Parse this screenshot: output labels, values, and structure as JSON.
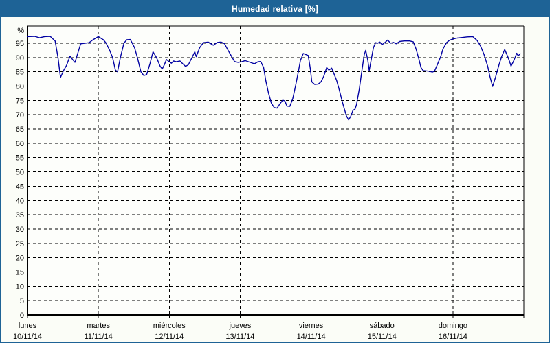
{
  "window": {
    "title": "Humedad relativa [%]"
  },
  "colors": {
    "titlebar_bg": "#1e6396",
    "window_border": "#1e6396",
    "page_bg": "#fbfdf7",
    "plot_bg": "#fdfefb",
    "grid": "#000000",
    "axis": "#000000",
    "text": "#000000",
    "line": "#0000a2"
  },
  "chart_data": {
    "type": "line",
    "title": "Humedad relativa [%]",
    "ylabel": "%",
    "y_unit_label": "%",
    "ylim": [
      0,
      101
    ],
    "y_ticks": [
      5,
      10,
      15,
      20,
      25,
      30,
      35,
      40,
      45,
      50,
      55,
      60,
      65,
      70,
      75,
      80,
      85,
      90,
      95
    ],
    "grid": "dashed",
    "legend_position": "none",
    "x_days": [
      {
        "day": "lunes",
        "date": "10/11/14"
      },
      {
        "day": "martes",
        "date": "11/11/14"
      },
      {
        "day": "miércoles",
        "date": "12/11/14"
      },
      {
        "day": "jueves",
        "date": "13/11/14"
      },
      {
        "day": "viernes",
        "date": "14/11/14"
      },
      {
        "day": "sábado",
        "date": "15/11/14"
      },
      {
        "day": "domingo",
        "date": "16/11/14"
      }
    ],
    "series": [
      {
        "name": "Humedad relativa [%]",
        "color": "#0000a2",
        "points": [
          [
            0.0,
            97.3
          ],
          [
            0.1,
            97.4
          ],
          [
            0.17,
            96.9
          ],
          [
            0.24,
            97.3
          ],
          [
            0.32,
            97.4
          ],
          [
            0.39,
            95.8
          ],
          [
            0.43,
            90.0
          ],
          [
            0.465,
            83.0
          ],
          [
            0.51,
            85.5
          ],
          [
            0.55,
            87.2
          ],
          [
            0.6,
            90.5
          ],
          [
            0.64,
            89.2
          ],
          [
            0.67,
            88.3
          ],
          [
            0.71,
            91.5
          ],
          [
            0.75,
            94.8
          ],
          [
            0.81,
            95.0
          ],
          [
            0.87,
            95.2
          ],
          [
            0.93,
            96.3
          ],
          [
            1.0,
            97.3
          ],
          [
            1.07,
            96.2
          ],
          [
            1.11,
            95.0
          ],
          [
            1.16,
            92.5
          ],
          [
            1.2,
            90.0
          ],
          [
            1.24,
            85.6
          ],
          [
            1.27,
            85.0
          ],
          [
            1.31,
            90.0
          ],
          [
            1.36,
            95.0
          ],
          [
            1.4,
            96.2
          ],
          [
            1.45,
            96.3
          ],
          [
            1.51,
            93.5
          ],
          [
            1.55,
            90.0
          ],
          [
            1.6,
            85.0
          ],
          [
            1.64,
            83.7
          ],
          [
            1.68,
            84.0
          ],
          [
            1.73,
            88.0
          ],
          [
            1.77,
            92.0
          ],
          [
            1.82,
            90.0
          ],
          [
            1.87,
            87.0
          ],
          [
            1.9,
            86.0
          ],
          [
            1.93,
            87.5
          ],
          [
            1.96,
            89.3
          ],
          [
            2.0,
            88.5
          ],
          [
            2.03,
            88.0
          ],
          [
            2.06,
            88.8
          ],
          [
            2.1,
            88.5
          ],
          [
            2.15,
            88.8
          ],
          [
            2.19,
            87.8
          ],
          [
            2.23,
            86.9
          ],
          [
            2.27,
            87.5
          ],
          [
            2.32,
            90.0
          ],
          [
            2.36,
            92.0
          ],
          [
            2.38,
            90.3
          ],
          [
            2.43,
            93.5
          ],
          [
            2.48,
            95.2
          ],
          [
            2.55,
            95.4
          ],
          [
            2.62,
            94.3
          ],
          [
            2.68,
            95.3
          ],
          [
            2.73,
            95.4
          ],
          [
            2.78,
            94.8
          ],
          [
            2.83,
            92.5
          ],
          [
            2.88,
            90.3
          ],
          [
            2.92,
            88.6
          ],
          [
            2.97,
            88.3
          ],
          [
            3.02,
            88.5
          ],
          [
            3.07,
            88.9
          ],
          [
            3.14,
            88.3
          ],
          [
            3.2,
            87.8
          ],
          [
            3.25,
            88.5
          ],
          [
            3.29,
            88.6
          ],
          [
            3.33,
            86.5
          ],
          [
            3.36,
            82.0
          ],
          [
            3.4,
            77.5
          ],
          [
            3.44,
            74.0
          ],
          [
            3.48,
            72.5
          ],
          [
            3.52,
            72.3
          ],
          [
            3.56,
            73.8
          ],
          [
            3.6,
            75.1
          ],
          [
            3.63,
            74.8
          ],
          [
            3.66,
            73.0
          ],
          [
            3.7,
            72.9
          ],
          [
            3.74,
            75.5
          ],
          [
            3.78,
            80.0
          ],
          [
            3.82,
            85.0
          ],
          [
            3.85,
            89.0
          ],
          [
            3.89,
            91.4
          ],
          [
            3.93,
            91.0
          ],
          [
            3.96,
            90.7
          ],
          [
            3.99,
            86.0
          ],
          [
            4.01,
            81.5
          ],
          [
            4.05,
            80.6
          ],
          [
            4.1,
            80.7
          ],
          [
            4.14,
            81.5
          ],
          [
            4.18,
            83.5
          ],
          [
            4.22,
            86.5
          ],
          [
            4.25,
            85.6
          ],
          [
            4.29,
            86.3
          ],
          [
            4.32,
            84.5
          ],
          [
            4.36,
            82.0
          ],
          [
            4.4,
            78.5
          ],
          [
            4.44,
            74.5
          ],
          [
            4.47,
            72.0
          ],
          [
            4.5,
            69.5
          ],
          [
            4.53,
            68.2
          ],
          [
            4.56,
            69.5
          ],
          [
            4.59,
            71.5
          ],
          [
            4.62,
            72.0
          ],
          [
            4.64,
            73.5
          ],
          [
            4.68,
            79.0
          ],
          [
            4.72,
            86.0
          ],
          [
            4.75,
            91.0
          ],
          [
            4.77,
            92.5
          ],
          [
            4.8,
            89.0
          ],
          [
            4.82,
            85.4
          ],
          [
            4.85,
            89.5
          ],
          [
            4.88,
            93.5
          ],
          [
            4.91,
            95.2
          ],
          [
            4.94,
            95.0
          ],
          [
            4.97,
            95.4
          ],
          [
            5.0,
            94.5
          ],
          [
            5.04,
            95.2
          ],
          [
            5.08,
            96.1
          ],
          [
            5.12,
            95.0
          ],
          [
            5.16,
            95.3
          ],
          [
            5.2,
            94.8
          ],
          [
            5.25,
            95.6
          ],
          [
            5.31,
            95.8
          ],
          [
            5.39,
            95.8
          ],
          [
            5.44,
            95.5
          ],
          [
            5.48,
            93.0
          ],
          [
            5.52,
            89.5
          ],
          [
            5.55,
            86.5
          ],
          [
            5.58,
            85.4
          ],
          [
            5.63,
            85.3
          ],
          [
            5.67,
            85.2
          ],
          [
            5.71,
            84.9
          ],
          [
            5.74,
            85.2
          ],
          [
            5.78,
            87.5
          ],
          [
            5.83,
            90.5
          ],
          [
            5.86,
            93.0
          ],
          [
            5.91,
            95.2
          ],
          [
            5.95,
            96.0
          ],
          [
            6.0,
            96.5
          ],
          [
            6.06,
            96.8
          ],
          [
            6.13,
            97.0
          ],
          [
            6.2,
            97.2
          ],
          [
            6.28,
            97.3
          ],
          [
            6.34,
            96.0
          ],
          [
            6.39,
            94.0
          ],
          [
            6.44,
            91.0
          ],
          [
            6.49,
            87.0
          ],
          [
            6.52,
            83.5
          ],
          [
            6.56,
            79.9
          ],
          [
            6.6,
            83.0
          ],
          [
            6.65,
            87.5
          ],
          [
            6.69,
            90.5
          ],
          [
            6.73,
            92.8
          ],
          [
            6.77,
            90.5
          ],
          [
            6.8,
            88.5
          ],
          [
            6.82,
            87.0
          ],
          [
            6.86,
            89.0
          ],
          [
            6.9,
            91.5
          ],
          [
            6.92,
            90.6
          ],
          [
            6.95,
            91.3
          ]
        ]
      }
    ]
  }
}
